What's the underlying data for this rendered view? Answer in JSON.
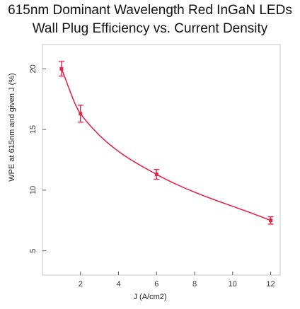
{
  "chart_data": {
    "type": "line",
    "title": "615nm Dominant Wavelength Red InGaN LEDs",
    "subtitle": "Wall Plug Efficiency vs. Current Density",
    "xlabel": "J (A/cm2)",
    "ylabel": "WPE at 615nm and given J (%)",
    "xlim": [
      0,
      12.5
    ],
    "ylim": [
      3,
      22
    ],
    "xticks": [
      2,
      4,
      6,
      8,
      10,
      12
    ],
    "yticks": [
      5,
      10,
      15,
      20
    ],
    "grid": false,
    "series": [
      {
        "x": [
          1,
          2,
          6,
          12
        ],
        "y": [
          20.0,
          16.3,
          11.3,
          7.5
        ],
        "error": [
          0.6,
          0.7,
          0.4,
          0.3
        ],
        "color": "#e0294a"
      }
    ]
  }
}
